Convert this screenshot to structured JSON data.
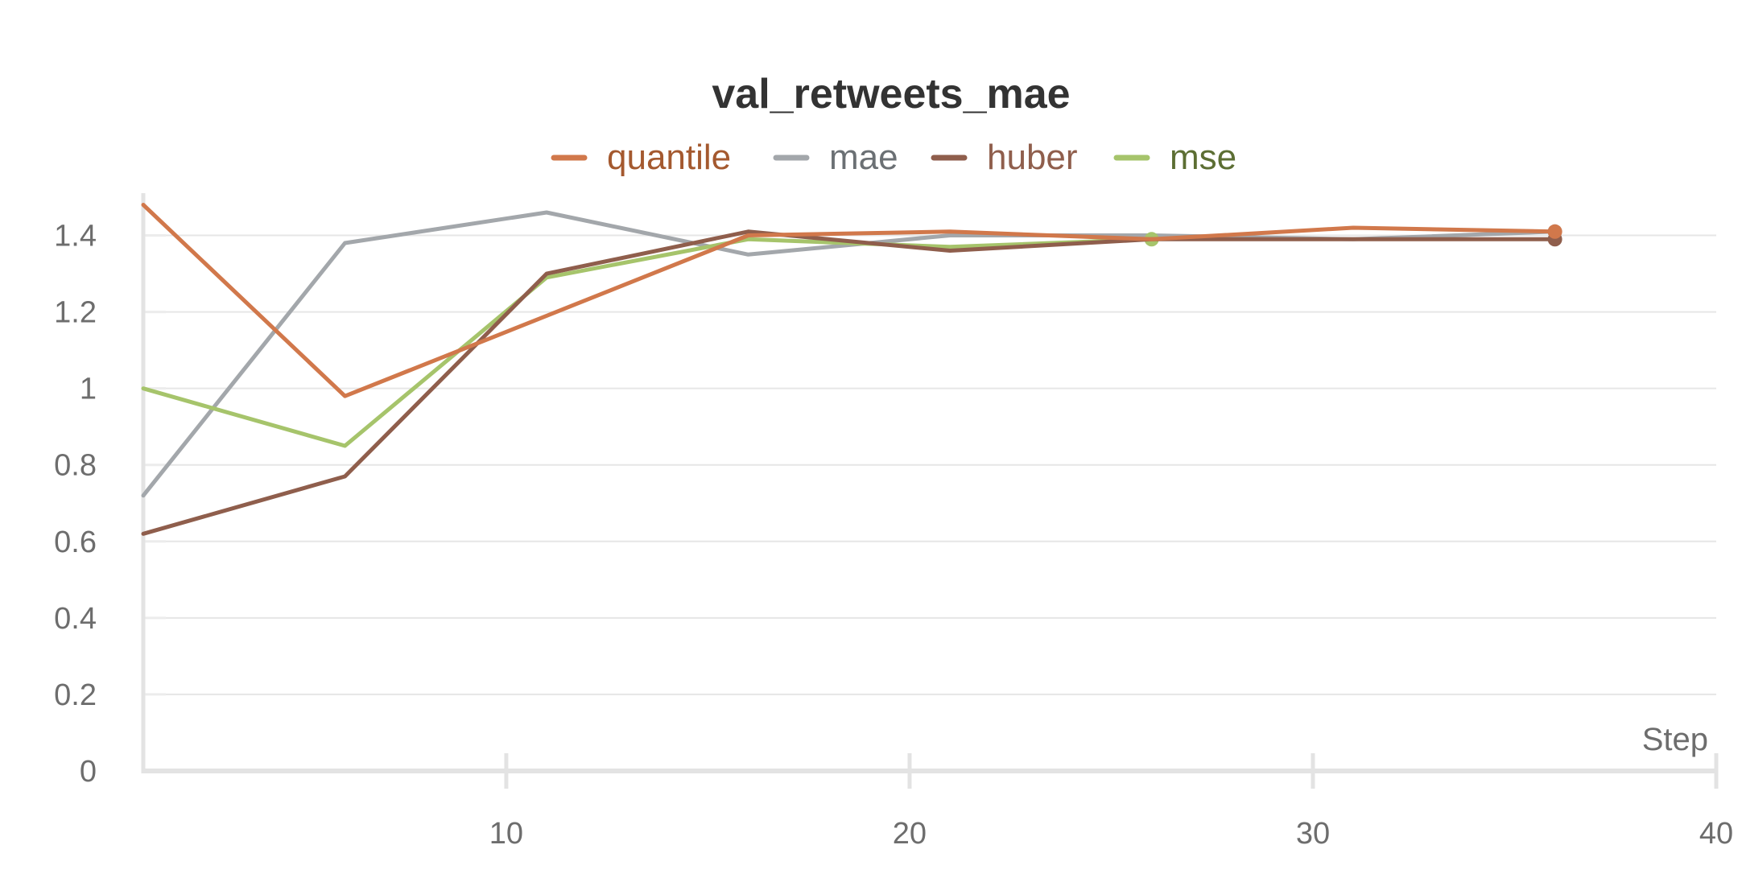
{
  "chart_data": {
    "type": "line",
    "title": "val_retweets_mae",
    "xlabel": "Step",
    "ylabel": "",
    "xlim": [
      1,
      40
    ],
    "ylim": [
      0,
      1.5
    ],
    "x_ticks": [
      10,
      20,
      30,
      40
    ],
    "y_ticks": [
      0,
      0.2,
      0.4,
      0.6,
      0.8,
      1,
      1.2,
      1.4
    ],
    "x_tick_labels": [
      "10",
      "20",
      "30",
      "40"
    ],
    "y_tick_labels": [
      "0",
      "0.2",
      "0.4",
      "0.6",
      "0.8",
      "1",
      "1.2",
      "1.4"
    ],
    "grid": true,
    "legend_position": "top",
    "series": [
      {
        "name": "quantile",
        "color": "#d1784b",
        "text_color": "#a4592f",
        "x": [
          1,
          6,
          11,
          16,
          21,
          26,
          31,
          36
        ],
        "values": [
          1.48,
          0.98,
          1.19,
          1.4,
          1.41,
          1.39,
          1.42,
          1.41
        ]
      },
      {
        "name": "mae",
        "color": "#a3a7ab",
        "text_color": "#6b7074",
        "x": [
          1,
          6,
          11,
          16,
          21,
          26,
          31,
          36
        ],
        "values": [
          0.72,
          1.38,
          1.46,
          1.35,
          1.4,
          1.4,
          1.39,
          1.41
        ]
      },
      {
        "name": "huber",
        "color": "#8f5e4c",
        "text_color": "#8f5e4c",
        "x": [
          1,
          6,
          11,
          16,
          21,
          26,
          31,
          36
        ],
        "values": [
          0.62,
          0.77,
          1.3,
          1.41,
          1.36,
          1.39,
          1.39,
          1.39
        ]
      },
      {
        "name": "mse",
        "color": "#a6c46b",
        "text_color": "#5c6e33",
        "x": [
          1,
          6,
          11,
          16,
          21,
          26
        ],
        "values": [
          1.0,
          0.85,
          1.29,
          1.39,
          1.37,
          1.39
        ]
      }
    ]
  }
}
